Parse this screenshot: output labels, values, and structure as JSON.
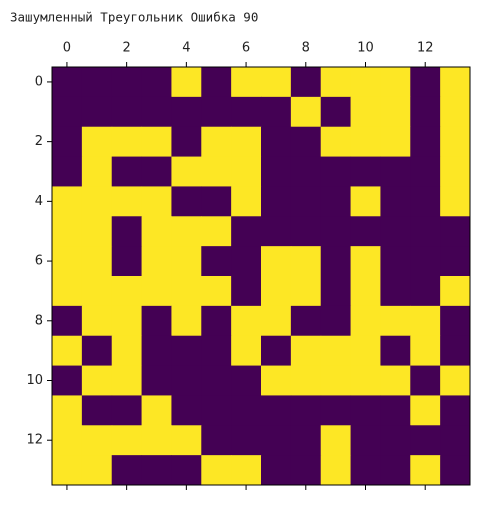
{
  "chart_data": {
    "type": "heatmap",
    "title": "Зашумленный Треугольник  Ошибка 90",
    "values": [
      [
        0,
        0,
        0,
        0,
        1,
        0,
        1,
        1,
        0,
        1,
        1,
        1,
        0,
        1
      ],
      [
        0,
        0,
        0,
        0,
        0,
        0,
        0,
        0,
        1,
        0,
        1,
        1,
        0,
        1
      ],
      [
        0,
        1,
        1,
        1,
        0,
        1,
        1,
        0,
        0,
        1,
        1,
        1,
        0,
        1
      ],
      [
        0,
        1,
        0,
        0,
        1,
        1,
        1,
        0,
        0,
        0,
        0,
        0,
        0,
        1
      ],
      [
        1,
        1,
        1,
        1,
        0,
        0,
        1,
        0,
        0,
        0,
        1,
        0,
        0,
        1
      ],
      [
        1,
        1,
        0,
        1,
        1,
        1,
        0,
        0,
        0,
        0,
        0,
        0,
        0,
        0
      ],
      [
        1,
        1,
        0,
        1,
        1,
        0,
        0,
        1,
        1,
        0,
        1,
        0,
        0,
        0
      ],
      [
        1,
        1,
        1,
        1,
        1,
        1,
        0,
        1,
        1,
        0,
        1,
        0,
        0,
        1
      ],
      [
        0,
        1,
        1,
        0,
        1,
        0,
        1,
        1,
        0,
        0,
        1,
        1,
        1,
        0
      ],
      [
        1,
        0,
        1,
        0,
        0,
        0,
        1,
        0,
        1,
        1,
        1,
        0,
        1,
        0
      ],
      [
        0,
        1,
        1,
        0,
        0,
        0,
        0,
        1,
        1,
        1,
        1,
        1,
        0,
        1
      ],
      [
        1,
        0,
        0,
        1,
        0,
        0,
        0,
        0,
        0,
        0,
        0,
        0,
        1,
        0
      ],
      [
        1,
        1,
        1,
        1,
        1,
        0,
        0,
        0,
        0,
        1,
        0,
        0,
        0,
        0
      ],
      [
        1,
        1,
        0,
        0,
        0,
        1,
        1,
        0,
        0,
        1,
        0,
        0,
        1,
        0
      ]
    ],
    "colors": [
      "#440154",
      "#fde725"
    ],
    "xlim": [
      -0.5,
      13.5
    ],
    "ylim": [
      13.5,
      -0.5
    ],
    "xticks": [
      0,
      2,
      4,
      6,
      8,
      10,
      12
    ],
    "yticks": [
      0,
      2,
      4,
      6,
      8,
      10,
      12
    ]
  }
}
